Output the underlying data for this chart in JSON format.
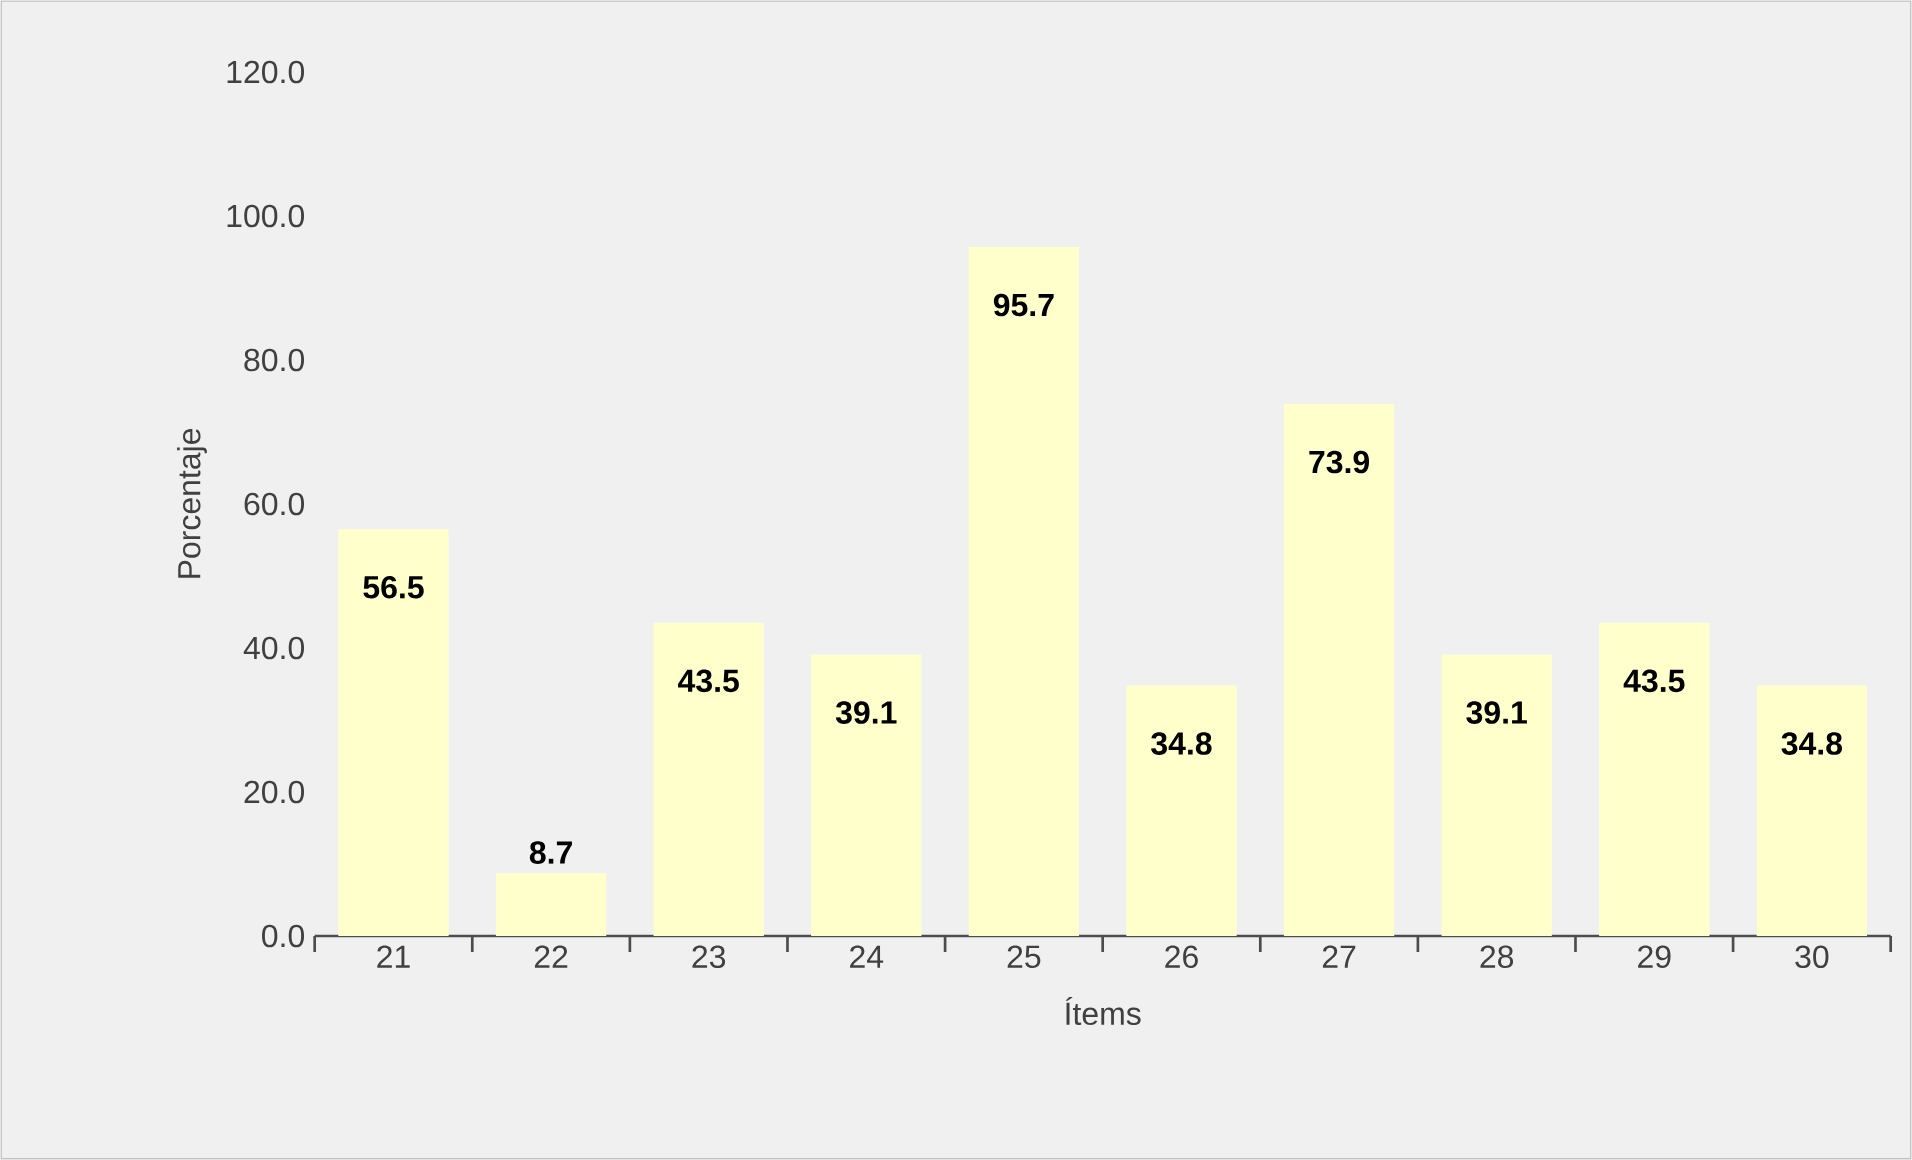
{
  "chart_data": {
    "type": "bar",
    "xlabel": "Ítems",
    "ylabel": "Porcentaje",
    "categories": [
      "21",
      "22",
      "23",
      "24",
      "25",
      "26",
      "27",
      "28",
      "29",
      "30"
    ],
    "values": [
      56.5,
      8.7,
      43.5,
      39.1,
      95.7,
      34.8,
      73.9,
      39.1,
      43.5,
      34.8
    ],
    "color": "#ffffcc",
    "ylim": [
      0,
      120
    ],
    "yticks": [
      {
        "value": 0,
        "label": "0.0"
      },
      {
        "value": 20,
        "label": "20.0"
      },
      {
        "value": 40,
        "label": "40.0"
      },
      {
        "value": 60,
        "label": "60.0"
      },
      {
        "value": 80,
        "label": "80.0"
      },
      {
        "value": 100,
        "label": "100.0"
      },
      {
        "value": 120,
        "label": "120.0"
      }
    ],
    "data_labels": true,
    "grid": false
  }
}
